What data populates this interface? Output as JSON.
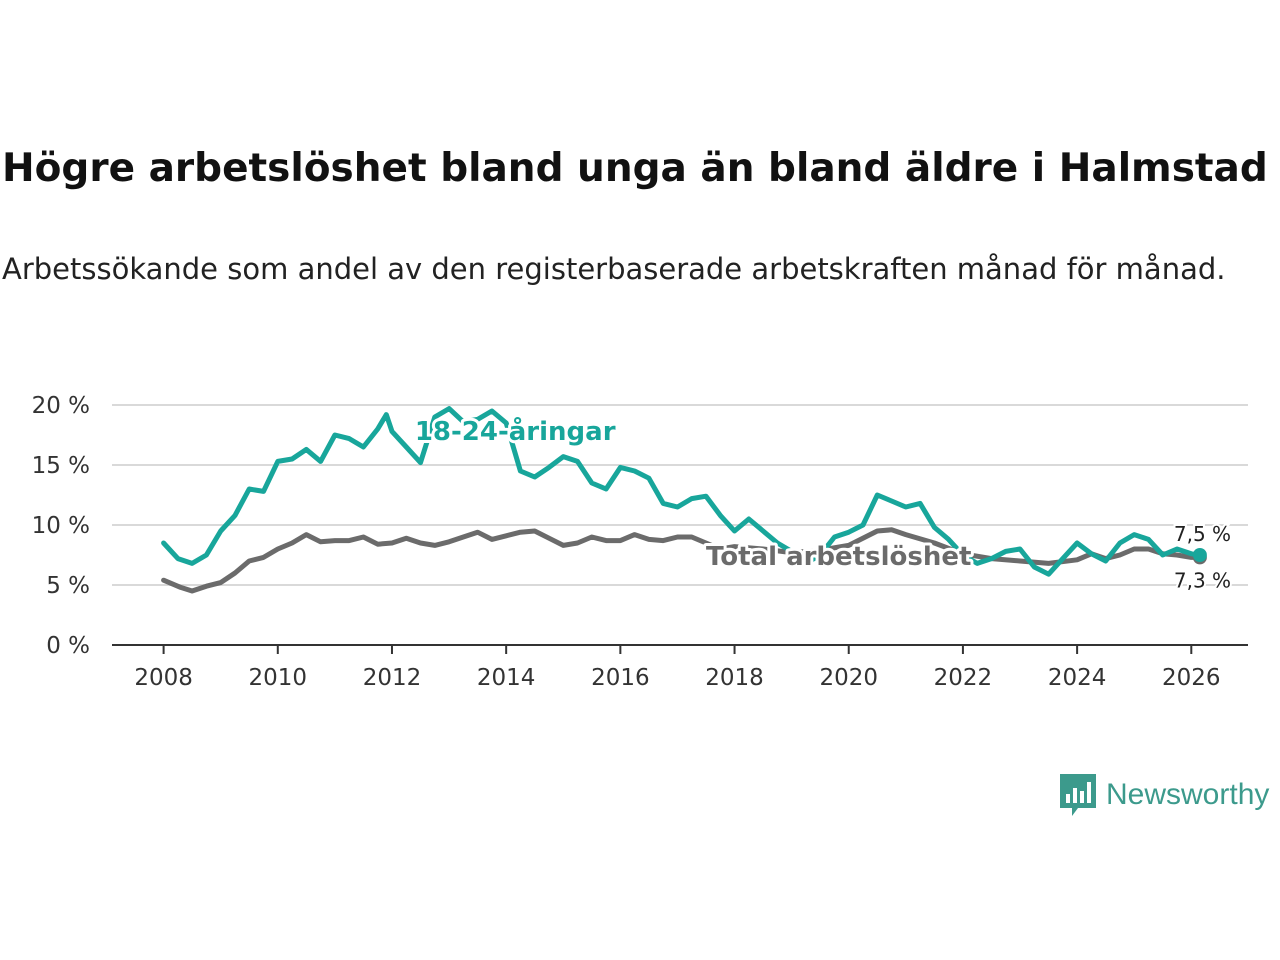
{
  "title": "Högre arbetslöshet bland unga än bland äldre i Halmstad",
  "subtitle": "Arbetssökande som andel av den registerbaserade arbetskraften månad för månad.",
  "brand": {
    "name": "Newsworthy",
    "color": "#3c9a8c"
  },
  "chart_data": {
    "type": "line",
    "x_unit": "year",
    "xlim": [
      2007.1,
      2027.0
    ],
    "ylim": [
      0,
      20
    ],
    "x_ticks": [
      "2008",
      "2010",
      "2012",
      "2014",
      "2016",
      "2018",
      "2020",
      "2022",
      "2024",
      "2026"
    ],
    "y_ticks": [
      "0 %",
      "5 %",
      "10 %",
      "15 %",
      "20 %"
    ],
    "grid": true,
    "series": [
      {
        "name": "Total arbetslöshet",
        "color": "#6b6b6b",
        "end_label": "7,3 %",
        "points": [
          [
            2008.0,
            5.4
          ],
          [
            2008.3,
            4.8
          ],
          [
            2008.5,
            4.5
          ],
          [
            2008.75,
            4.9
          ],
          [
            2009.0,
            5.2
          ],
          [
            2009.25,
            6.0
          ],
          [
            2009.5,
            7.0
          ],
          [
            2009.75,
            7.3
          ],
          [
            2010.0,
            8.0
          ],
          [
            2010.25,
            8.5
          ],
          [
            2010.5,
            9.2
          ],
          [
            2010.75,
            8.6
          ],
          [
            2011.0,
            8.7
          ],
          [
            2011.25,
            8.7
          ],
          [
            2011.5,
            9.0
          ],
          [
            2011.75,
            8.4
          ],
          [
            2012.0,
            8.5
          ],
          [
            2012.25,
            8.9
          ],
          [
            2012.5,
            8.5
          ],
          [
            2012.75,
            8.3
          ],
          [
            2013.0,
            8.6
          ],
          [
            2013.25,
            9.0
          ],
          [
            2013.5,
            9.4
          ],
          [
            2013.75,
            8.8
          ],
          [
            2014.0,
            9.1
          ],
          [
            2014.25,
            9.4
          ],
          [
            2014.5,
            9.5
          ],
          [
            2014.75,
            8.9
          ],
          [
            2015.0,
            8.3
          ],
          [
            2015.25,
            8.5
          ],
          [
            2015.5,
            9.0
          ],
          [
            2015.75,
            8.7
          ],
          [
            2016.0,
            8.7
          ],
          [
            2016.25,
            9.2
          ],
          [
            2016.5,
            8.8
          ],
          [
            2016.75,
            8.7
          ],
          [
            2017.0,
            9.0
          ],
          [
            2017.25,
            9.0
          ],
          [
            2017.5,
            8.5
          ],
          [
            2017.75,
            8.0
          ],
          [
            2018.0,
            8.2
          ],
          [
            2018.5,
            8.0
          ],
          [
            2019.0,
            7.7
          ],
          [
            2019.5,
            7.9
          ],
          [
            2020.0,
            8.3
          ],
          [
            2020.5,
            9.5
          ],
          [
            2020.75,
            9.6
          ],
          [
            2021.0,
            9.2
          ],
          [
            2021.5,
            8.5
          ],
          [
            2022.0,
            7.6
          ],
          [
            2022.5,
            7.2
          ],
          [
            2023.0,
            7.0
          ],
          [
            2023.5,
            6.8
          ],
          [
            2024.0,
            7.1
          ],
          [
            2024.25,
            7.6
          ],
          [
            2024.5,
            7.2
          ],
          [
            2024.75,
            7.5
          ],
          [
            2025.0,
            8.0
          ],
          [
            2025.25,
            8.0
          ],
          [
            2025.5,
            7.6
          ],
          [
            2025.75,
            7.5
          ],
          [
            2026.0,
            7.3
          ],
          [
            2026.15,
            7.3
          ]
        ]
      },
      {
        "name": "18-24-åringar",
        "color": "#18a69b",
        "end_label": "7,5 %",
        "points": [
          [
            2008.0,
            8.5
          ],
          [
            2008.25,
            7.2
          ],
          [
            2008.5,
            6.8
          ],
          [
            2008.75,
            7.5
          ],
          [
            2009.0,
            9.5
          ],
          [
            2009.25,
            10.8
          ],
          [
            2009.5,
            13.0
          ],
          [
            2009.75,
            12.8
          ],
          [
            2010.0,
            15.3
          ],
          [
            2010.25,
            15.5
          ],
          [
            2010.5,
            16.3
          ],
          [
            2010.75,
            15.3
          ],
          [
            2011.0,
            17.5
          ],
          [
            2011.25,
            17.2
          ],
          [
            2011.5,
            16.5
          ],
          [
            2011.75,
            18.0
          ],
          [
            2011.9,
            19.2
          ],
          [
            2012.0,
            17.8
          ],
          [
            2012.25,
            16.5
          ],
          [
            2012.5,
            15.2
          ],
          [
            2012.75,
            19.0
          ],
          [
            2013.0,
            19.7
          ],
          [
            2013.25,
            18.6
          ],
          [
            2013.5,
            18.8
          ],
          [
            2013.75,
            19.5
          ],
          [
            2014.0,
            18.5
          ],
          [
            2014.25,
            14.5
          ],
          [
            2014.5,
            14.0
          ],
          [
            2014.75,
            14.8
          ],
          [
            2015.0,
            15.7
          ],
          [
            2015.25,
            15.3
          ],
          [
            2015.5,
            13.5
          ],
          [
            2015.75,
            13.0
          ],
          [
            2016.0,
            14.8
          ],
          [
            2016.25,
            14.5
          ],
          [
            2016.5,
            13.9
          ],
          [
            2016.75,
            11.8
          ],
          [
            2017.0,
            11.5
          ],
          [
            2017.25,
            12.2
          ],
          [
            2017.5,
            12.4
          ],
          [
            2017.75,
            10.8
          ],
          [
            2018.0,
            9.5
          ],
          [
            2018.25,
            10.5
          ],
          [
            2018.5,
            9.5
          ],
          [
            2018.75,
            8.5
          ],
          [
            2019.0,
            7.8
          ],
          [
            2019.25,
            6.8
          ],
          [
            2019.5,
            7.5
          ],
          [
            2019.75,
            9.0
          ],
          [
            2020.0,
            9.4
          ],
          [
            2020.25,
            10.0
          ],
          [
            2020.5,
            12.5
          ],
          [
            2020.75,
            12.0
          ],
          [
            2021.0,
            11.5
          ],
          [
            2021.25,
            11.8
          ],
          [
            2021.5,
            9.8
          ],
          [
            2021.75,
            8.8
          ],
          [
            2022.0,
            7.5
          ],
          [
            2022.25,
            6.8
          ],
          [
            2022.5,
            7.2
          ],
          [
            2022.75,
            7.8
          ],
          [
            2023.0,
            8.0
          ],
          [
            2023.25,
            6.5
          ],
          [
            2023.5,
            5.9
          ],
          [
            2023.75,
            7.2
          ],
          [
            2024.0,
            8.5
          ],
          [
            2024.25,
            7.6
          ],
          [
            2024.5,
            7.0
          ],
          [
            2024.75,
            8.5
          ],
          [
            2025.0,
            9.2
          ],
          [
            2025.25,
            8.8
          ],
          [
            2025.5,
            7.5
          ],
          [
            2025.75,
            8.0
          ],
          [
            2026.0,
            7.6
          ],
          [
            2026.15,
            7.5
          ]
        ]
      }
    ]
  }
}
